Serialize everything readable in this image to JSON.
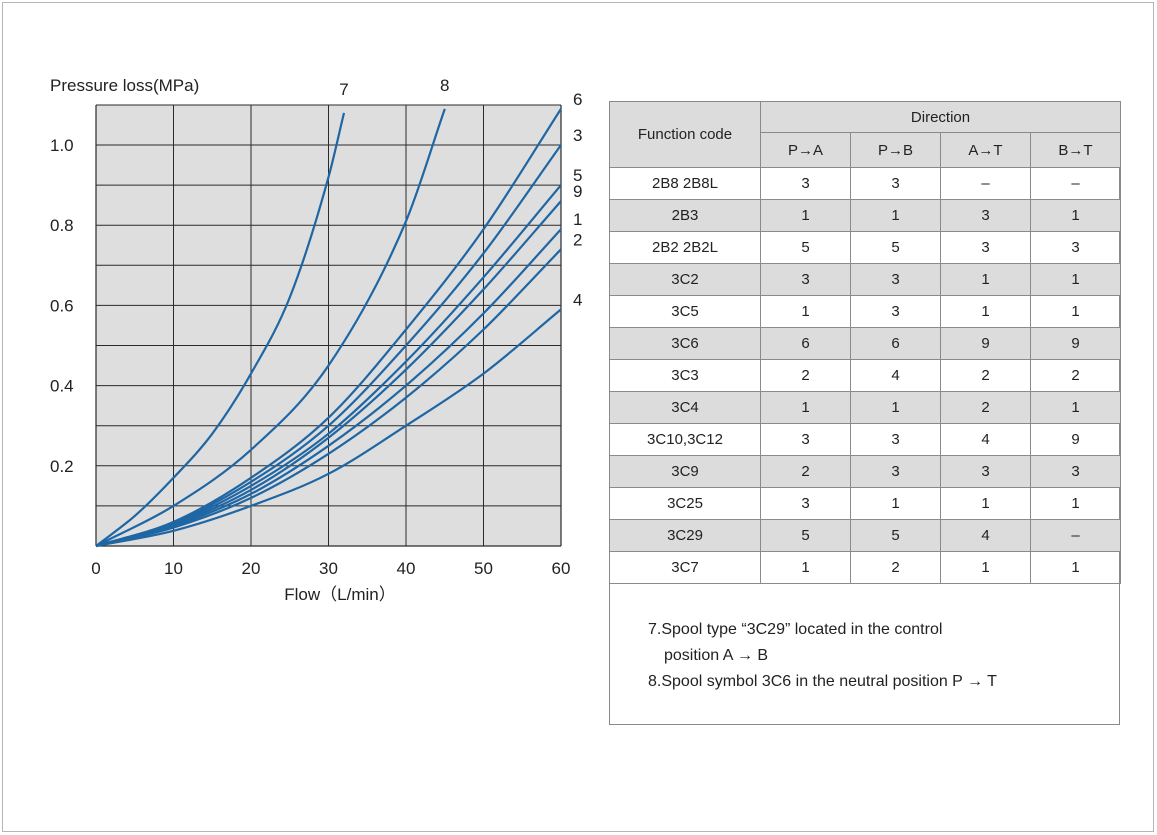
{
  "chart_data": {
    "type": "line",
    "ylabel": "Pressure loss(MPa)",
    "xlabel": "Flow（L/min）",
    "xlim": [
      0,
      60
    ],
    "ylim": [
      0,
      1.1
    ],
    "xticks": [
      "0",
      "10",
      "20",
      "30",
      "40",
      "50",
      "60"
    ],
    "yticks": [
      "0.2",
      "0.4",
      "0.6",
      "0.8",
      "1.0"
    ],
    "grid": true,
    "series": [
      {
        "name": "7",
        "x": [
          0,
          5,
          10,
          15,
          20,
          25,
          30,
          32
        ],
        "y": [
          0,
          0.075,
          0.17,
          0.28,
          0.43,
          0.62,
          0.92,
          1.08
        ]
      },
      {
        "name": "8",
        "x": [
          0,
          10,
          20,
          30,
          40,
          45
        ],
        "y": [
          0,
          0.1,
          0.24,
          0.45,
          0.81,
          1.09
        ]
      },
      {
        "name": "6",
        "x": [
          0,
          10,
          20,
          30,
          40,
          50,
          60
        ],
        "y": [
          0,
          0.06,
          0.17,
          0.32,
          0.54,
          0.79,
          1.09
        ]
      },
      {
        "name": "3",
        "x": [
          0,
          10,
          20,
          30,
          40,
          50,
          60
        ],
        "y": [
          0,
          0.058,
          0.16,
          0.3,
          0.5,
          0.73,
          1.0
        ]
      },
      {
        "name": "5",
        "x": [
          0,
          10,
          20,
          30,
          40,
          50,
          60
        ],
        "y": [
          0,
          0.055,
          0.15,
          0.28,
          0.46,
          0.67,
          0.9
        ]
      },
      {
        "name": "9",
        "x": [
          0,
          10,
          20,
          30,
          40,
          50,
          60
        ],
        "y": [
          0,
          0.053,
          0.14,
          0.27,
          0.44,
          0.64,
          0.86
        ]
      },
      {
        "name": "1",
        "x": [
          0,
          10,
          20,
          30,
          40,
          50,
          60
        ],
        "y": [
          0,
          0.05,
          0.13,
          0.25,
          0.4,
          0.58,
          0.79
        ]
      },
      {
        "name": "2",
        "x": [
          0,
          10,
          20,
          30,
          40,
          50,
          60
        ],
        "y": [
          0,
          0.046,
          0.12,
          0.23,
          0.37,
          0.54,
          0.74
        ]
      },
      {
        "name": "4",
        "x": [
          0,
          10,
          20,
          30,
          40,
          50,
          60
        ],
        "y": [
          0,
          0.038,
          0.1,
          0.18,
          0.3,
          0.43,
          0.59
        ]
      }
    ],
    "colors": {
      "line": "#1f66a4",
      "plot_bg": "#dedede",
      "grid": "#2a2a2a"
    }
  },
  "table": {
    "header_function": "Function code",
    "header_direction": "Direction",
    "sub_headers": [
      "P→A",
      "P→B",
      "A→T",
      "B→T"
    ],
    "rows": [
      {
        "code": "2B8  2B8L",
        "values": [
          "3",
          "3",
          "–",
          "–"
        ]
      },
      {
        "code": "2B3",
        "values": [
          "1",
          "1",
          "3",
          "1"
        ]
      },
      {
        "code": "2B2  2B2L",
        "values": [
          "5",
          "5",
          "3",
          "3"
        ]
      },
      {
        "code": "3C2",
        "values": [
          "3",
          "3",
          "1",
          "1"
        ]
      },
      {
        "code": "3C5",
        "values": [
          "1",
          "3",
          "1",
          "1"
        ]
      },
      {
        "code": "3C6",
        "values": [
          "6",
          "6",
          "9",
          "9"
        ]
      },
      {
        "code": "3C3",
        "values": [
          "2",
          "4",
          "2",
          "2"
        ]
      },
      {
        "code": "3C4",
        "values": [
          "1",
          "1",
          "2",
          "1"
        ]
      },
      {
        "code": "3C10,3C12",
        "values": [
          "3",
          "3",
          "4",
          "9"
        ]
      },
      {
        "code": "3C9",
        "values": [
          "2",
          "3",
          "3",
          "3"
        ]
      },
      {
        "code": "3C25",
        "values": [
          "3",
          "1",
          "1",
          "1"
        ]
      },
      {
        "code": "3C29",
        "values": [
          "5",
          "5",
          "4",
          "–"
        ]
      },
      {
        "code": "3C7",
        "values": [
          "1",
          "2",
          "1",
          "1"
        ]
      }
    ]
  },
  "notes": {
    "note7_line1": "7.Spool type  “3C29”  located in the control",
    "note7_line2": "position A → B",
    "note8": "8.Spool symbol 3C6 in the neutral position P → T"
  }
}
